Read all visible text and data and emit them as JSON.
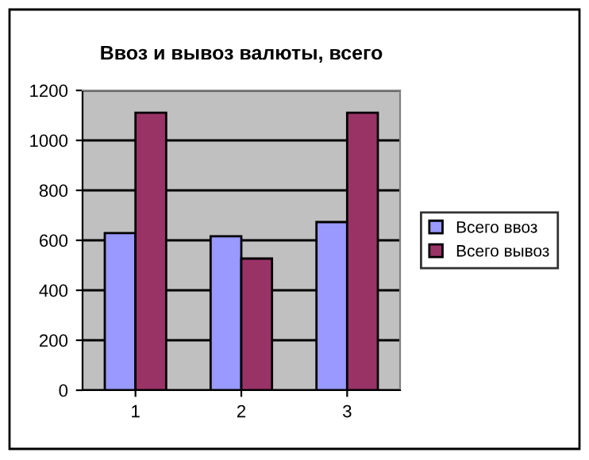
{
  "chart_data": {
    "type": "bar",
    "title": "Ввоз и вывоз валюты, всего",
    "categories": [
      "1",
      "2",
      "3"
    ],
    "series": [
      {
        "name": "Всего ввоз",
        "color": "#9999ff",
        "values": [
          629,
          616,
          673
        ]
      },
      {
        "name": "Всего вывоз",
        "color": "#993366",
        "values": [
          1111,
          527,
          1111
        ]
      }
    ],
    "ylim": [
      0,
      1200
    ],
    "yticks": [
      0,
      200,
      400,
      600,
      800,
      1000,
      1200
    ],
    "grid": "y",
    "legend": "right"
  }
}
